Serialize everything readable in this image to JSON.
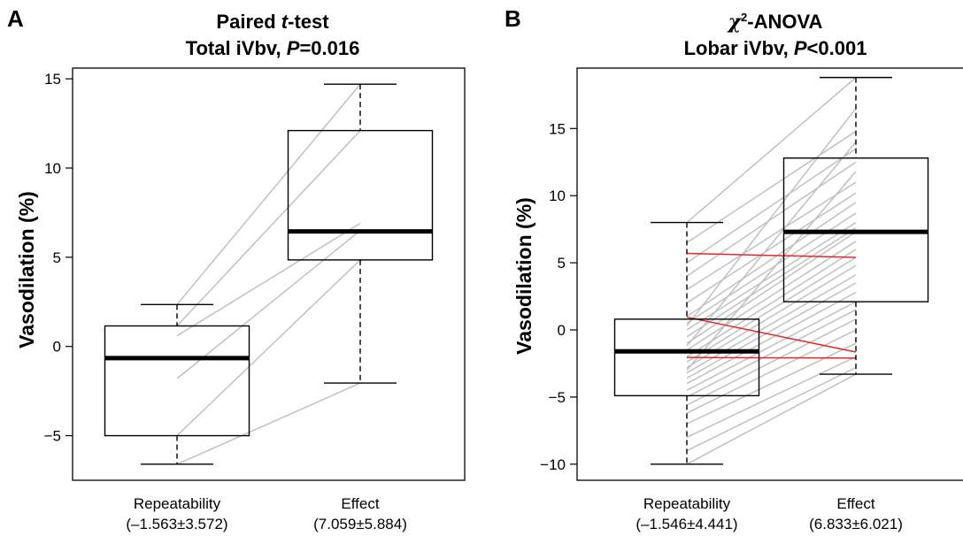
{
  "chart_data": [
    {
      "type": "boxplot",
      "panel_label": "A",
      "title_line1": "Paired t-test",
      "title_line1_plain": "Paired ",
      "title_line1_italic": "t",
      "title_line1_rest": "-test",
      "title_line2_plain": "Total iVbv, ",
      "title_line2_italic": "P",
      "title_line2_rest": "=0.016",
      "ylabel": "Vasodilation (%)",
      "ylim": [
        -7.5,
        15.6
      ],
      "yticks": [
        -5,
        0,
        5,
        10,
        15
      ],
      "ytick_labels": [
        "−5",
        "0",
        "5",
        "10",
        "15"
      ],
      "categories": [
        "Repeatability",
        "Effect"
      ],
      "category_stats": [
        "(–1.563±3.572)",
        "(7.059±5.884)"
      ],
      "boxes": [
        {
          "whisker_low": -6.6,
          "q1": -5.0,
          "median": -0.65,
          "q3": 1.15,
          "whisker_high": 2.35
        },
        {
          "whisker_low": -2.05,
          "q1": 4.85,
          "median": 6.45,
          "q3": 12.1,
          "whisker_high": 14.7
        }
      ],
      "paired_lines": [
        {
          "from": 2.35,
          "to": 14.7,
          "color": "#c0c0c0"
        },
        {
          "from": 1.15,
          "to": 12.1,
          "color": "#c0c0c0"
        },
        {
          "from": 0.6,
          "to": 6.9,
          "color": "#c0c0c0"
        },
        {
          "from": -1.8,
          "to": 6.5,
          "color": "#c0c0c0"
        },
        {
          "from": -5.0,
          "to": 4.85,
          "color": "#c0c0c0"
        },
        {
          "from": -6.6,
          "to": -2.05,
          "color": "#c0c0c0"
        }
      ]
    },
    {
      "type": "boxplot",
      "panel_label": "B",
      "title_line1_italic": "χ",
      "title_line1_sup": "2",
      "title_line1_rest": "-ANOVA",
      "title_line2_plain": "Lobar iVbv, ",
      "title_line2_italic": "P",
      "title_line2_rest": "<0.001",
      "ylabel": "Vasodilation (%)",
      "ylim": [
        -11.2,
        19.5
      ],
      "yticks": [
        -10,
        -5,
        0,
        5,
        10,
        15
      ],
      "ytick_labels": [
        "−10",
        "−5",
        "0",
        "5",
        "10",
        "15"
      ],
      "categories": [
        "Repeatability",
        "Effect"
      ],
      "category_stats": [
        "(–1.546±4.441)",
        "(6.833±6.021)"
      ],
      "boxes": [
        {
          "whisker_low": -10.0,
          "q1": -4.9,
          "median": -1.6,
          "q3": 0.8,
          "whisker_high": 8.0
        },
        {
          "whisker_low": -3.3,
          "q1": 2.1,
          "median": 7.3,
          "q3": 12.8,
          "whisker_high": 18.8
        }
      ],
      "paired_lines": [
        {
          "from": 8.0,
          "to": 18.8,
          "color": "#c0c0c0"
        },
        {
          "from": 6.5,
          "to": 14.8,
          "color": "#c0c0c0"
        },
        {
          "from": 5.0,
          "to": 13.5,
          "color": "#c0c0c0"
        },
        {
          "from": 4.0,
          "to": 12.5,
          "color": "#c0c0c0"
        },
        {
          "from": 3.0,
          "to": 11.0,
          "color": "#c0c0c0"
        },
        {
          "from": 2.0,
          "to": 10.2,
          "color": "#c0c0c0"
        },
        {
          "from": 1.0,
          "to": 9.5,
          "color": "#c0c0c0"
        },
        {
          "from": 0.5,
          "to": 8.7,
          "color": "#c0c0c0"
        },
        {
          "from": 0.0,
          "to": 8.0,
          "color": "#c0c0c0"
        },
        {
          "from": -0.5,
          "to": 7.6,
          "color": "#c0c0c0"
        },
        {
          "from": -1.0,
          "to": 7.3,
          "color": "#c0c0c0"
        },
        {
          "from": -1.5,
          "to": 6.6,
          "color": "#c0c0c0"
        },
        {
          "from": -2.0,
          "to": 6.0,
          "color": "#c0c0c0"
        },
        {
          "from": -2.4,
          "to": 5.4,
          "color": "#c0c0c0"
        },
        {
          "from": -2.8,
          "to": 4.8,
          "color": "#c0c0c0"
        },
        {
          "from": -3.2,
          "to": 4.1,
          "color": "#c0c0c0"
        },
        {
          "from": -3.6,
          "to": 3.5,
          "color": "#c0c0c0"
        },
        {
          "from": -4.0,
          "to": 2.8,
          "color": "#c0c0c0"
        },
        {
          "from": -4.5,
          "to": 2.1,
          "color": "#c0c0c0"
        },
        {
          "from": -5.0,
          "to": 1.5,
          "color": "#c0c0c0"
        },
        {
          "from": -5.6,
          "to": 0.8,
          "color": "#c0c0c0"
        },
        {
          "from": -6.2,
          "to": 0.0,
          "color": "#c0c0c0"
        },
        {
          "from": -7.0,
          "to": -1.0,
          "color": "#c0c0c0"
        },
        {
          "from": -8.0,
          "to": -2.0,
          "color": "#c0c0c0"
        },
        {
          "from": -9.0,
          "to": -2.8,
          "color": "#c0c0c0"
        },
        {
          "from": -10.0,
          "to": -3.3,
          "color": "#c0c0c0"
        },
        {
          "from": 0.3,
          "to": 16.5,
          "color": "#c0c0c0"
        },
        {
          "from": -1.2,
          "to": 14.0,
          "color": "#c0c0c0"
        },
        {
          "from": -3.0,
          "to": 11.8,
          "color": "#c0c0c0"
        },
        {
          "from": 5.7,
          "to": 5.4,
          "color": "#e8262b"
        },
        {
          "from": 0.95,
          "to": -1.65,
          "color": "#e8262b"
        },
        {
          "from": -2.05,
          "to": -2.1,
          "color": "#e8262b"
        }
      ]
    }
  ]
}
